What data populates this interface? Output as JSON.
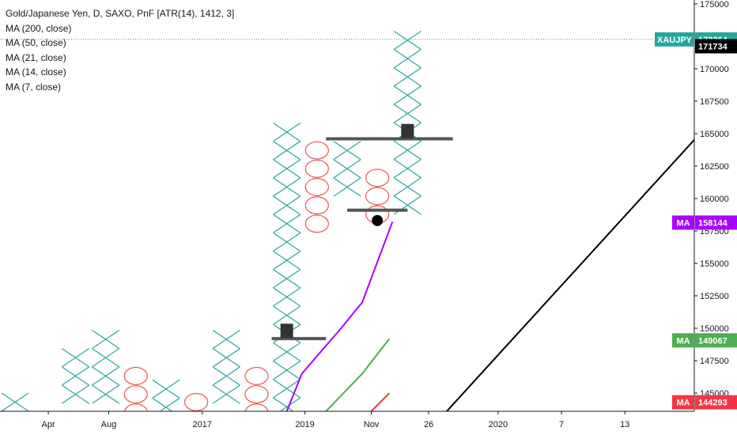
{
  "legend": {
    "title": "Gold/Japanese Yen, D, SAXO, PnF [ATR(14), 1412, 3]",
    "ma_lines": [
      "MA (200, close)",
      "MA (50, close)",
      "MA (21, close)",
      "MA (14, close)",
      "MA (7, close)"
    ]
  },
  "colors": {
    "x_box": "#26a69a",
    "o_box": "#ef5350",
    "ma_purple": "#aa00ff",
    "ma_green": "#4caf50",
    "ma_red": "#f23645",
    "trend_line": "#000000",
    "level_line": "#555555",
    "price_line": "#26a69a",
    "axis_text": "#131722"
  },
  "chart_data": {
    "type": "point-and-figure",
    "symbol": "XAUJPY",
    "box_size": 1412,
    "reversal": 3,
    "columns": [
      {
        "type": "X",
        "low": 143600,
        "high": 145012
      },
      {
        "type": "O",
        "low": 143600,
        "high": 143600
      },
      {
        "type": "X",
        "low": 143600,
        "high": 148436
      },
      {
        "type": "X",
        "low": 143600,
        "high": 149848
      },
      {
        "type": "O",
        "low": 143600,
        "high": 147024
      },
      {
        "type": "X",
        "low": 143600,
        "high": 146024
      },
      {
        "type": "O",
        "low": 143600,
        "high": 145012
      },
      {
        "type": "X",
        "low": 143600,
        "high": 149848
      },
      {
        "type": "O",
        "low": 143600,
        "high": 147024
      },
      {
        "type": "X",
        "low": 143600,
        "high": 165824
      },
      {
        "type": "O",
        "low": 159400,
        "high": 164412
      },
      {
        "type": "X",
        "low": 160100,
        "high": 164412
      },
      {
        "type": "O",
        "low": 158800,
        "high": 162300
      },
      {
        "type": "X",
        "low": 159000,
        "high": 172900
      }
    ],
    "price_levels": [
      {
        "value": 149200,
        "col_start": 8.5,
        "col_end": 10.3
      },
      {
        "value": 164600,
        "col_start": 10.3,
        "col_end": 14.5
      },
      {
        "value": 159100,
        "col_start": 11,
        "col_end": 13
      }
    ],
    "markers": [
      {
        "shape": "square",
        "value": 149800,
        "col": 9
      },
      {
        "shape": "square",
        "value": 165200,
        "col": 13
      },
      {
        "shape": "dot",
        "value": 158300,
        "col": 12
      }
    ],
    "moving_averages": [
      {
        "name": "MA",
        "color": "purple",
        "last": 158144,
        "points": [
          [
            9,
            143600
          ],
          [
            9.5,
            146500
          ],
          [
            10.8,
            150000
          ],
          [
            11.5,
            152000
          ],
          [
            12.5,
            158200
          ]
        ]
      },
      {
        "name": "MA",
        "color": "green",
        "last": 149067,
        "points": [
          [
            10.3,
            143600
          ],
          [
            11.5,
            146500
          ],
          [
            12.4,
            149200
          ]
        ]
      },
      {
        "name": "MA",
        "color": "red",
        "last": 144293,
        "points": [
          [
            11.8,
            143600
          ],
          [
            12.4,
            145000
          ]
        ]
      }
    ],
    "trend_line": {
      "start": [
        14.3,
        143600
      ],
      "end": [
        23,
        165800
      ]
    },
    "last_price": 172264,
    "price_labels": [
      {
        "text": "XAUJPY",
        "value": 172264,
        "color": "#26a69a"
      },
      {
        "value": 171734,
        "color": "#000000"
      },
      {
        "text": "MA",
        "value": 158144,
        "color": "#aa00ff"
      },
      {
        "text": "MA",
        "value": 149067,
        "color": "#4caf50"
      },
      {
        "text": "MA",
        "value": 144293,
        "color": "#f23645"
      }
    ],
    "y_ticks": [
      145000,
      147500,
      150000,
      152500,
      155000,
      157500,
      160000,
      162500,
      165000,
      167500,
      170000,
      175000
    ],
    "ylim": [
      143600,
      175300
    ],
    "x_ticks": [
      "Apr",
      "Aug",
      "2017",
      "2019",
      "Nov",
      "26",
      "2020",
      "7",
      "13"
    ],
    "x_tick_cols": [
      1.1,
      3.1,
      6.2,
      9.6,
      11.8,
      13.7,
      16,
      18.1,
      20.2
    ],
    "xlim": [
      -0.5,
      22.5
    ]
  }
}
